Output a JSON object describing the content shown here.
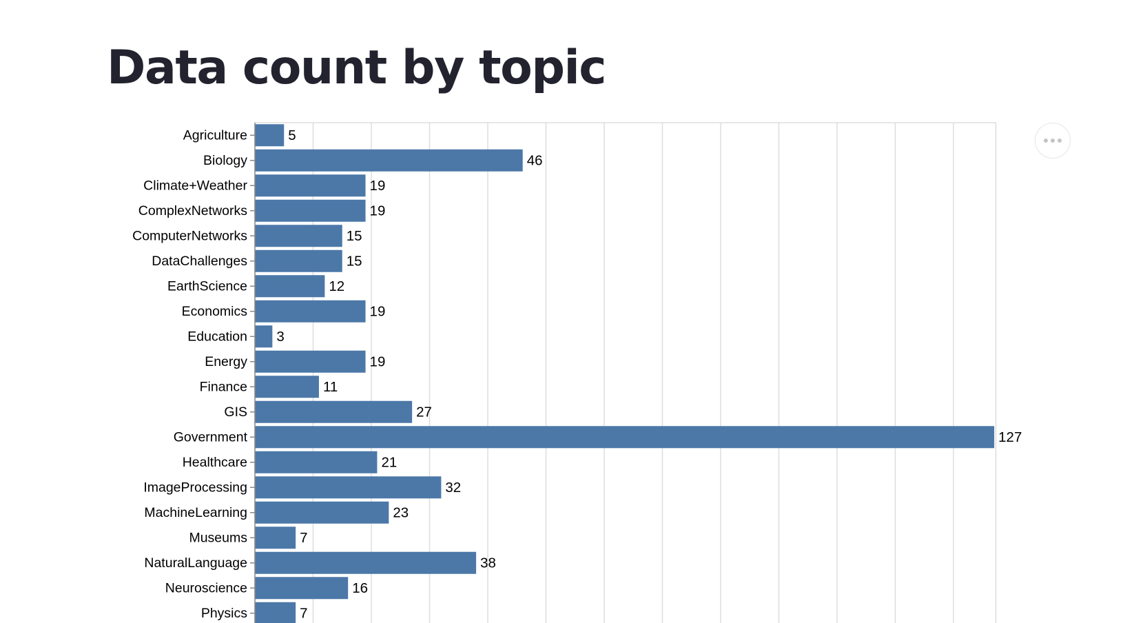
{
  "title": "Data count by topic",
  "actions_icon": "ellipsis-icon",
  "colors": {
    "bar": "#4c78a8",
    "grid": "#dddddd",
    "axis": "#888888",
    "text": "#000000",
    "title": "#23232f"
  },
  "chart_data": {
    "type": "bar",
    "orientation": "horizontal",
    "title": "Data count by topic",
    "xlabel": "",
    "ylabel": "",
    "grid": true,
    "data_labels": true,
    "categories": [
      "Agriculture",
      "Biology",
      "Climate+Weather",
      "ComplexNetworks",
      "ComputerNetworks",
      "DataChallenges",
      "EarthScience",
      "Economics",
      "Education",
      "Energy",
      "Finance",
      "GIS",
      "Government",
      "Healthcare",
      "ImageProcessing",
      "MachineLearning",
      "Museums",
      "NaturalLanguage",
      "Neuroscience",
      "Physics"
    ],
    "values": [
      5,
      46,
      19,
      19,
      15,
      15,
      12,
      19,
      3,
      19,
      11,
      27,
      127,
      21,
      32,
      23,
      7,
      38,
      16,
      7
    ],
    "xlim": [
      0,
      130
    ],
    "grid_step": 10
  }
}
